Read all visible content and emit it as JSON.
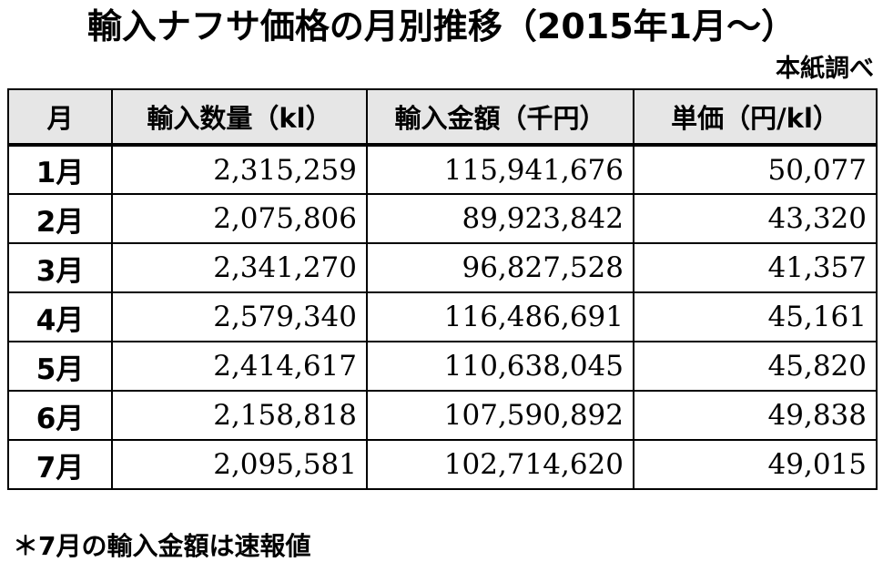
{
  "title": "輸入ナフサ価格の月別推移（2015年1月～）",
  "source": "本紙調べ",
  "table": {
    "headers": [
      "月",
      "輸入数量（kl）",
      "輸入金額（千円）",
      "単価（円/kl）"
    ],
    "rows": [
      {
        "month": "1月",
        "quantity": "2,315,259",
        "amount": "115,941,676",
        "unit_price": "50,077"
      },
      {
        "month": "2月",
        "quantity": "2,075,806",
        "amount": "89,923,842",
        "unit_price": "43,320"
      },
      {
        "month": "3月",
        "quantity": "2,341,270",
        "amount": "96,827,528",
        "unit_price": "41,357"
      },
      {
        "month": "4月",
        "quantity": "2,579,340",
        "amount": "116,486,691",
        "unit_price": "45,161"
      },
      {
        "month": "5月",
        "quantity": "2,414,617",
        "amount": "110,638,045",
        "unit_price": "45,820"
      },
      {
        "month": "6月",
        "quantity": "2,158,818",
        "amount": "107,590,892",
        "unit_price": "49,838"
      },
      {
        "month": "7月",
        "quantity": "2,095,581",
        "amount": "102,714,620",
        "unit_price": "49,015"
      }
    ]
  },
  "note": "＊7月の輸入金額は速報値"
}
